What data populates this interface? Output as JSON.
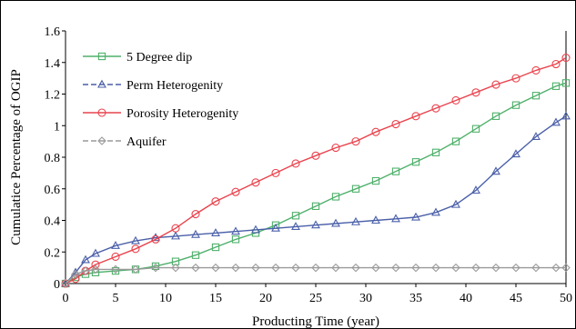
{
  "chart_data": {
    "type": "line",
    "xlabel": "Producting Time (year)",
    "ylabel": "Cumulatice Percentage of OGIP",
    "xlim": [
      0,
      50
    ],
    "ylim": [
      0,
      1.6
    ],
    "xticks": [
      "0",
      "5",
      "10",
      "15",
      "20",
      "25",
      "30",
      "35",
      "40",
      "45",
      "50"
    ],
    "yticks": [
      "0",
      "0.2",
      "0.4",
      "0.6",
      "0.8",
      "1",
      "1.2",
      "1.4",
      "1.6"
    ],
    "legend_position": "top-left",
    "grid": false,
    "series": [
      {
        "name": "5 Degree dip",
        "color": "#4fb06b",
        "marker": "square",
        "x": [
          0,
          1,
          2,
          3,
          5,
          7,
          9,
          11,
          13,
          15,
          17,
          19,
          21,
          23,
          25,
          27,
          29,
          31,
          33,
          35,
          37,
          39,
          41,
          43,
          45,
          47,
          49,
          50
        ],
        "y": [
          0,
          0.04,
          0.06,
          0.07,
          0.08,
          0.09,
          0.11,
          0.14,
          0.18,
          0.23,
          0.28,
          0.32,
          0.37,
          0.43,
          0.49,
          0.55,
          0.6,
          0.65,
          0.71,
          0.77,
          0.83,
          0.9,
          0.98,
          1.06,
          1.13,
          1.19,
          1.25,
          1.27
        ]
      },
      {
        "name": "Perm Heterogenity",
        "color": "#4a5fa8",
        "marker": "triangle",
        "x": [
          0,
          1,
          2,
          3,
          5,
          7,
          9,
          11,
          13,
          15,
          17,
          19,
          21,
          23,
          25,
          27,
          29,
          31,
          33,
          35,
          37,
          39,
          41,
          43,
          45,
          47,
          49,
          50
        ],
        "y": [
          0,
          0.07,
          0.15,
          0.19,
          0.24,
          0.27,
          0.29,
          0.3,
          0.31,
          0.32,
          0.33,
          0.34,
          0.35,
          0.36,
          0.37,
          0.38,
          0.39,
          0.4,
          0.41,
          0.42,
          0.45,
          0.5,
          0.59,
          0.71,
          0.82,
          0.93,
          1.02,
          1.06
        ]
      },
      {
        "name": "Porosity Heterogenity",
        "color": "#e8434d",
        "marker": "circle",
        "x": [
          0,
          1,
          2,
          3,
          5,
          7,
          9,
          11,
          13,
          15,
          17,
          19,
          21,
          23,
          25,
          27,
          29,
          31,
          33,
          35,
          37,
          39,
          41,
          43,
          45,
          47,
          49,
          50
        ],
        "y": [
          0,
          0.03,
          0.08,
          0.12,
          0.17,
          0.22,
          0.28,
          0.35,
          0.44,
          0.52,
          0.58,
          0.64,
          0.7,
          0.76,
          0.81,
          0.86,
          0.9,
          0.96,
          1.01,
          1.06,
          1.11,
          1.16,
          1.21,
          1.26,
          1.3,
          1.35,
          1.39,
          1.43
        ]
      },
      {
        "name": "Aquifer",
        "color": "#9a9a9a",
        "marker": "diamond",
        "x": [
          0,
          1,
          2,
          3,
          5,
          7,
          9,
          11,
          13,
          15,
          17,
          19,
          21,
          23,
          25,
          27,
          29,
          31,
          33,
          35,
          37,
          39,
          41,
          43,
          45,
          47,
          49,
          50
        ],
        "y": [
          0,
          0.06,
          0.08,
          0.09,
          0.09,
          0.09,
          0.1,
          0.1,
          0.1,
          0.1,
          0.1,
          0.1,
          0.1,
          0.1,
          0.1,
          0.1,
          0.1,
          0.1,
          0.1,
          0.1,
          0.1,
          0.1,
          0.1,
          0.1,
          0.1,
          0.1,
          0.1,
          0.1
        ]
      }
    ]
  }
}
